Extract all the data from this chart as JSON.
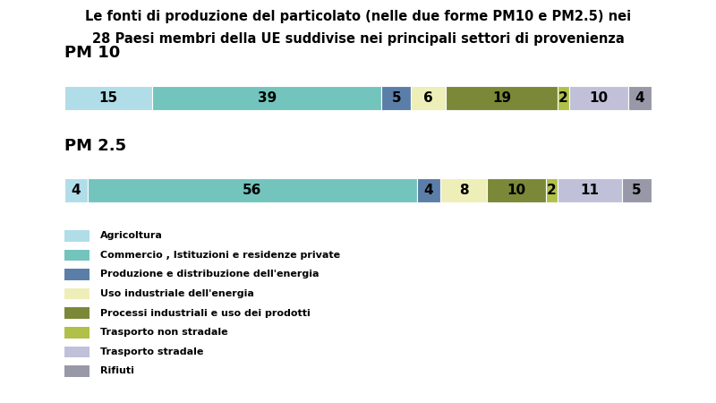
{
  "title_line1": "Le fonti di produzione del particolato (nelle due forme PM10 e PM2.5) nei",
  "title_line2": "28 Paesi membri della UE suddivise nei principali settori di provenienza",
  "pm10_label": "PM 10",
  "pm25_label": "PM 2.5",
  "pm10_values": [
    15,
    39,
    5,
    6,
    19,
    2,
    10,
    4
  ],
  "pm25_values": [
    4,
    56,
    4,
    8,
    10,
    2,
    11,
    5
  ],
  "colors": [
    "#b0dde8",
    "#72c4bc",
    "#5a7ea8",
    "#eeeeb8",
    "#7a8838",
    "#b0c048",
    "#c0c0d8",
    "#9898a8"
  ],
  "legend_labels": [
    "Agricoltura",
    "Commercio , Istituzioni e residenze private",
    "Produzione e distribuzione dell'energia",
    "Uso industriale dell'energia",
    "Processi industriali e uso dei prodotti",
    "Trasporto non stradale",
    "Trasporto stradale",
    "Rifiuti"
  ],
  "background_color": "#ffffff",
  "title_fontsize": 10.5,
  "pm_label_fontsize": 13,
  "bar_label_fontsize": 11
}
